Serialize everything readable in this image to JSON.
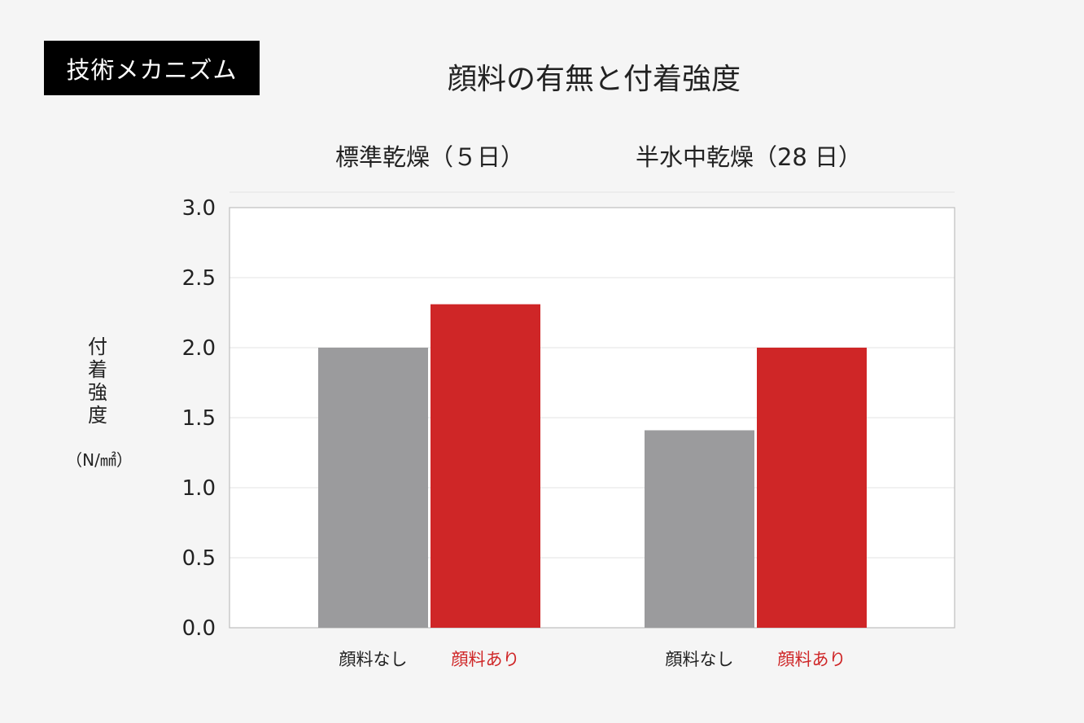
{
  "badge": "技術メカニズム",
  "title": "顔料の有無と付着強度",
  "ylabel": {
    "main": "付着強度",
    "unit": "（N/㎟）"
  },
  "colors": {
    "no_pigment": "#9b9b9d",
    "pigment": "#cf2627",
    "grid": "#e3e3e3",
    "frame": "#bdbdbd"
  },
  "chart_data": {
    "type": "bar",
    "title": "顔料の有無と付着強度",
    "ylabel": "付着強度（N/㎟）",
    "xlabel": "",
    "ylim": [
      0,
      3.0
    ],
    "yticks": [
      "0.0",
      "0.5",
      "1.0",
      "1.5",
      "2.0",
      "2.5",
      "3.0"
    ],
    "groups": [
      {
        "label": "標準乾燥（５日）",
        "bars": [
          {
            "label": "顔料なし",
            "value": 2.0,
            "color": "#9b9b9d",
            "label_color": "#222222"
          },
          {
            "label": "顔料あり",
            "value": 2.31,
            "color": "#cf2627",
            "label_color": "#cf2627"
          }
        ]
      },
      {
        "label": "半水中乾燥（28 日）",
        "bars": [
          {
            "label": "顔料なし",
            "value": 1.41,
            "color": "#9b9b9d",
            "label_color": "#222222"
          },
          {
            "label": "顔料あり",
            "value": 2.0,
            "color": "#cf2627",
            "label_color": "#cf2627"
          }
        ]
      }
    ],
    "grid": true
  }
}
